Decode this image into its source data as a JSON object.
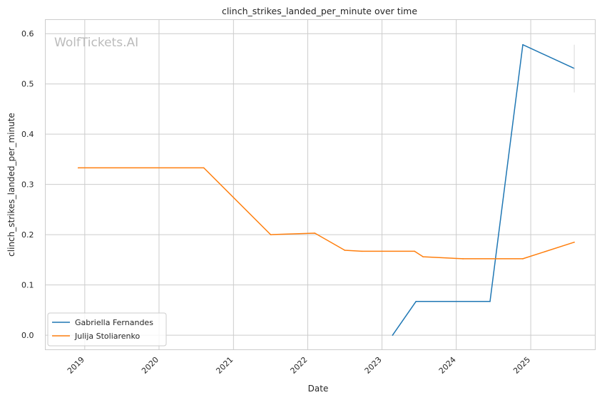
{
  "chart_data": {
    "type": "line",
    "title": "clinch_strikes_landed_per_minute over time",
    "xlabel": "Date",
    "ylabel": "clinch_strikes_landed_per_minute",
    "watermark": "WolfTickets.AI",
    "x_ticks": [
      "2019",
      "2020",
      "2021",
      "2022",
      "2023",
      "2024",
      "2025"
    ],
    "y_ticks": [
      "0.0",
      "0.1",
      "0.2",
      "0.3",
      "0.4",
      "0.5",
      "0.6"
    ],
    "xlim": [
      "2018-06-21",
      "2025-11-14"
    ],
    "ylim": [
      -0.029,
      0.628
    ],
    "grid": true,
    "legend_position": "lower-left",
    "series": [
      {
        "name": "Gabriella Fernandes",
        "color": "#1f77b4",
        "points": [
          {
            "x": "2023-02-22",
            "y": 0.0
          },
          {
            "x": "2023-06-17",
            "y": 0.067
          },
          {
            "x": "2024-06-15",
            "y": 0.067
          },
          {
            "x": "2024-11-23",
            "y": 0.578
          },
          {
            "x": "2025-08-03",
            "y": 0.531
          }
        ],
        "error_bar": {
          "x": "2025-08-03",
          "low": 0.483,
          "high": 0.578
        }
      },
      {
        "name": "Julija Stoliarenko",
        "color": "#ff7f0e",
        "points": [
          {
            "x": "2018-11-30",
            "y": 0.333
          },
          {
            "x": "2020-08-08",
            "y": 0.333
          },
          {
            "x": "2021-07-03",
            "y": 0.2
          },
          {
            "x": "2022-02-05",
            "y": 0.203
          },
          {
            "x": "2022-07-02",
            "y": 0.169
          },
          {
            "x": "2022-09-24",
            "y": 0.167
          },
          {
            "x": "2023-06-10",
            "y": 0.167
          },
          {
            "x": "2023-07-22",
            "y": 0.156
          },
          {
            "x": "2024-02-03",
            "y": 0.152
          },
          {
            "x": "2024-11-23",
            "y": 0.152
          },
          {
            "x": "2025-08-03",
            "y": 0.185
          }
        ]
      }
    ]
  }
}
